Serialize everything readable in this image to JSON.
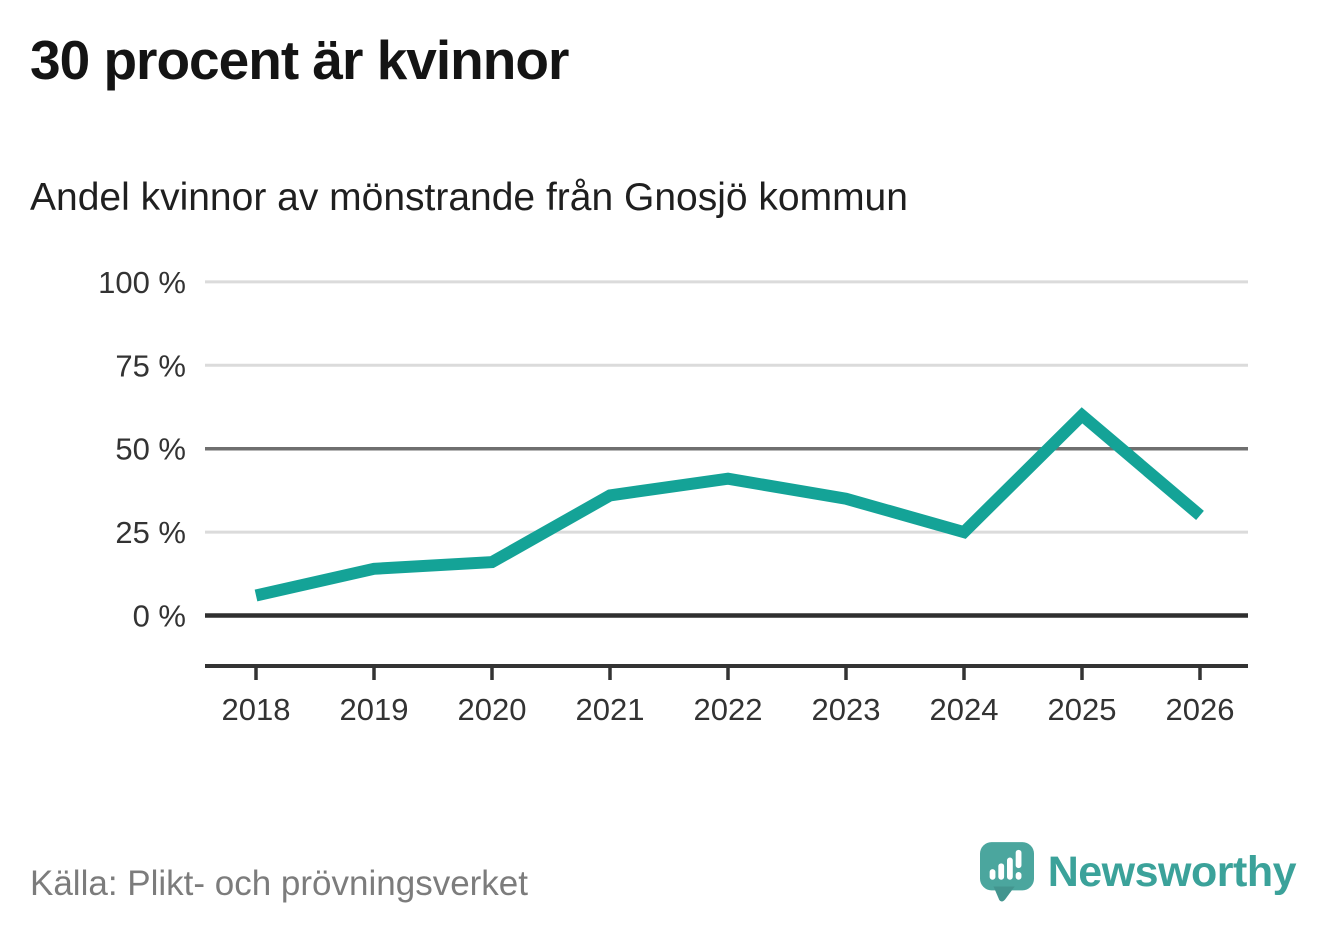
{
  "header": {
    "title": "30 procent är kvinnor",
    "subtitle": "Andel kvinnor av mönstrande från Gnosjö kommun"
  },
  "chart_data": {
    "type": "line",
    "title": "30 procent är kvinnor",
    "subtitle": "Andel kvinnor av mönstrande från Gnosjö kommun",
    "categories": [
      "2018",
      "2019",
      "2020",
      "2021",
      "2022",
      "2023",
      "2024",
      "2025",
      "2026"
    ],
    "values": [
      6,
      14,
      16,
      36,
      41,
      35,
      25,
      60,
      30
    ],
    "unit": "%",
    "xlabel": "",
    "ylabel": "",
    "ylim": [
      0,
      100
    ],
    "y_ticks": [
      0,
      25,
      50,
      75,
      100
    ],
    "y_tick_labels": [
      "0 %",
      "25 %",
      "50 %",
      "75 %",
      "100 %"
    ],
    "grid": true,
    "legend": false,
    "baseline_tick": 0,
    "emphasized_tick": 50,
    "line_color": "#14A397"
  },
  "footer": {
    "source": "Källa: Plikt- och prövningsverket",
    "brand": "Newsworthy"
  },
  "colors": {
    "accent": "#14A397",
    "logo": "#4BA69E",
    "wordmark": "#3BA29A",
    "grid_light": "#dbdbdb",
    "grid_mid": "#6f6f6f",
    "axis": "#333333",
    "text": "#1f1f1f",
    "muted": "#7c7c7c"
  }
}
